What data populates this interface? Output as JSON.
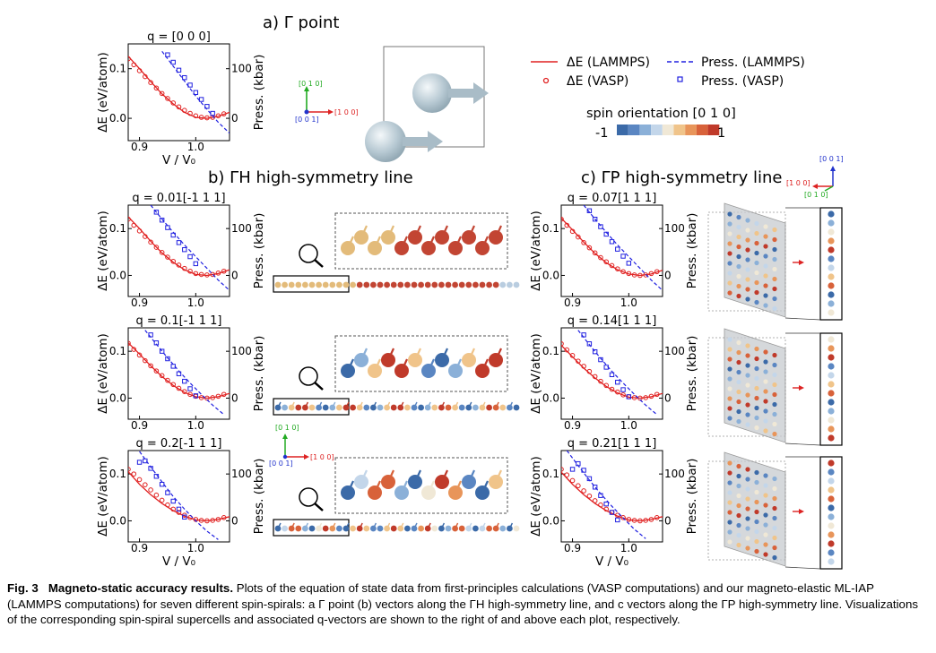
{
  "panels": {
    "a_title": "a) Γ point",
    "b_title": "b) ΓH high-symmetry line",
    "c_title": "c) ΓP high-symmetry line"
  },
  "legend": {
    "lammps_energy": "ΔE (LAMMPS)",
    "vasp_energy": "ΔE (VASP)",
    "lammps_press": "Press. (LAMMPS)",
    "vasp_press": "Press. (VASP)",
    "colorbar_title": "spin orientation [0 1 0]",
    "colorbar_min": "-1",
    "colorbar_max": "1",
    "colorbar_colors": [
      "#3b6aa8",
      "#5a86c2",
      "#8bb0d8",
      "#c3d6ea",
      "#f0e8d6",
      "#f0c48a",
      "#e8955a",
      "#d8623a",
      "#c03a2a"
    ]
  },
  "axes_common": {
    "energy_label": "ΔE (eV/atom)",
    "pressure_label": "Press. (kbar)",
    "x_label": "V / V₀",
    "energy_ticks": [
      "0.1",
      "0.0"
    ],
    "pressure_ticks": [
      "100",
      "0"
    ],
    "x_ticks": [
      "0.9",
      "1.0"
    ]
  },
  "vector_labels": {
    "x": "[1 0 0]",
    "y": "[0 1 0]",
    "z": "[0 0 1]"
  },
  "chart_data": [
    {
      "id": "a",
      "type": "line",
      "title": "q = [0 0 0]",
      "xlabel": "V / V₀",
      "ylabel": "ΔE (eV/atom)",
      "y2label": "Press. (kbar)",
      "xlim": [
        0.88,
        1.06
      ],
      "ylim": [
        -0.045,
        0.15
      ],
      "y2lim": [
        -45,
        150
      ],
      "series": [
        {
          "name": "ΔE (LAMMPS)",
          "x": [
            0.88,
            0.9,
            0.92,
            0.94,
            0.96,
            0.98,
            1.0,
            1.02,
            1.04,
            1.06
          ],
          "values": [
            0.125,
            0.1,
            0.074,
            0.049,
            0.029,
            0.012,
            0.002,
            0.0,
            0.004,
            0.012
          ]
        },
        {
          "name": "ΔE (VASP)",
          "x": [
            0.88,
            0.89,
            0.9,
            0.91,
            0.92,
            0.93,
            0.94,
            0.95,
            0.96,
            0.97,
            0.98,
            0.99,
            1.0,
            1.01,
            1.02,
            1.03,
            1.04,
            1.05
          ],
          "values": [
            0.12,
            0.108,
            0.096,
            0.084,
            0.072,
            0.061,
            0.05,
            0.04,
            0.031,
            0.023,
            0.016,
            0.01,
            0.005,
            0.002,
            0.001,
            0.002,
            0.005,
            0.009
          ]
        },
        {
          "name": "Press. (LAMMPS)",
          "x": [
            0.94,
            0.96,
            0.98,
            1.0,
            1.02,
            1.04,
            1.06
          ],
          "values": [
            135,
            105,
            75,
            45,
            18,
            -8,
            -30
          ]
        },
        {
          "name": "Press. (VASP)",
          "x": [
            0.95,
            0.96,
            0.97,
            0.98,
            0.99,
            1.0,
            1.01,
            1.02,
            1.03
          ],
          "values": [
            128,
            113,
            97,
            82,
            67,
            52,
            38,
            24,
            10
          ]
        }
      ]
    },
    {
      "id": "b1",
      "type": "line",
      "title": "q = 0.01[-1 1 1]",
      "xlabel": "",
      "ylabel": "ΔE (eV/atom)",
      "y2label": "Press. (kbar)",
      "xlim": [
        0.88,
        1.06
      ],
      "ylim": [
        -0.045,
        0.15
      ],
      "y2lim": [
        -45,
        150
      ],
      "series": [
        {
          "name": "ΔE (LAMMPS)",
          "x": [
            0.88,
            0.9,
            0.92,
            0.94,
            0.96,
            0.98,
            1.0,
            1.02,
            1.04,
            1.06
          ],
          "values": [
            0.125,
            0.1,
            0.073,
            0.048,
            0.028,
            0.012,
            0.002,
            0.0,
            0.004,
            0.012
          ]
        },
        {
          "name": "ΔE (VASP)",
          "x": [
            0.88,
            0.89,
            0.9,
            0.91,
            0.92,
            0.93,
            0.94,
            0.95,
            0.96,
            0.97,
            0.98,
            0.99,
            1.0,
            1.01,
            1.02,
            1.03,
            1.04,
            1.05
          ],
          "values": [
            0.12,
            0.107,
            0.095,
            0.083,
            0.071,
            0.06,
            0.049,
            0.039,
            0.03,
            0.022,
            0.015,
            0.009,
            0.004,
            0.002,
            0.001,
            0.002,
            0.005,
            0.009
          ]
        },
        {
          "name": "Press. (LAMMPS)",
          "x": [
            0.92,
            0.94,
            0.96,
            0.98,
            1.0,
            1.02,
            1.04,
            1.06
          ],
          "values": [
            150,
            120,
            92,
            65,
            40,
            15,
            -10,
            -32
          ]
        },
        {
          "name": "Press. (VASP)",
          "x": [
            0.93,
            0.94,
            0.95,
            0.96,
            0.97,
            0.98,
            0.99,
            1.0
          ],
          "values": [
            135,
            118,
            102,
            86,
            70,
            55,
            40,
            25
          ]
        }
      ]
    },
    {
      "id": "b2",
      "type": "line",
      "title": "q = 0.1[-1 1 1]",
      "xlabel": "",
      "ylabel": "ΔE (eV/atom)",
      "y2label": "Press. (kbar)",
      "xlim": [
        0.88,
        1.06
      ],
      "ylim": [
        -0.045,
        0.15
      ],
      "y2lim": [
        -45,
        150
      ],
      "series": [
        {
          "name": "ΔE (LAMMPS)",
          "x": [
            0.88,
            0.9,
            0.92,
            0.94,
            0.96,
            0.98,
            1.0,
            1.02,
            1.04,
            1.06
          ],
          "values": [
            0.118,
            0.094,
            0.069,
            0.046,
            0.027,
            0.012,
            0.003,
            0.0,
            0.003,
            0.01
          ]
        },
        {
          "name": "ΔE (VASP)",
          "x": [
            0.88,
            0.89,
            0.9,
            0.91,
            0.92,
            0.93,
            0.94,
            0.95,
            0.96,
            0.97,
            0.98,
            0.99,
            1.0,
            1.01,
            1.02,
            1.03,
            1.04,
            1.05
          ],
          "values": [
            0.117,
            0.104,
            0.092,
            0.08,
            0.069,
            0.058,
            0.048,
            0.038,
            0.029,
            0.021,
            0.014,
            0.008,
            0.004,
            0.001,
            0.0,
            0.001,
            0.004,
            0.008
          ]
        },
        {
          "name": "Press. (LAMMPS)",
          "x": [
            0.91,
            0.93,
            0.95,
            0.97,
            0.99,
            1.01,
            1.03,
            1.05
          ],
          "values": [
            145,
            115,
            86,
            58,
            32,
            8,
            -15,
            -35
          ]
        },
        {
          "name": "Press. (VASP)",
          "x": [
            0.92,
            0.93,
            0.94,
            0.95,
            0.96,
            0.97,
            0.98,
            0.99,
            1.0
          ],
          "values": [
            135,
            118,
            100,
            84,
            68,
            52,
            36,
            20,
            5
          ]
        }
      ]
    },
    {
      "id": "b3",
      "type": "line",
      "title": "q = 0.2[-1 1 1]",
      "xlabel": "V / V₀",
      "ylabel": "ΔE (eV/atom)",
      "y2label": "Press. (kbar)",
      "xlim": [
        0.88,
        1.06
      ],
      "ylim": [
        -0.045,
        0.15
      ],
      "y2lim": [
        -45,
        150
      ],
      "series": [
        {
          "name": "ΔE (LAMMPS)",
          "x": [
            0.88,
            0.9,
            0.92,
            0.94,
            0.96,
            0.98,
            1.0,
            1.02,
            1.04,
            1.06
          ],
          "values": [
            0.105,
            0.078,
            0.056,
            0.037,
            0.022,
            0.01,
            0.002,
            0.0,
            0.003,
            0.009
          ]
        },
        {
          "name": "ΔE (VASP)",
          "x": [
            0.88,
            0.89,
            0.9,
            0.91,
            0.92,
            0.93,
            0.94,
            0.95,
            0.96,
            0.97,
            0.98,
            0.99,
            1.0,
            1.01,
            1.02,
            1.03,
            1.04,
            1.05
          ],
          "values": [
            0.11,
            0.1,
            0.088,
            0.077,
            0.066,
            0.055,
            0.044,
            0.034,
            0.025,
            0.018,
            0.012,
            0.007,
            0.003,
            0.001,
            0.0,
            0.001,
            0.003,
            0.007
          ]
        },
        {
          "name": "Press. (LAMMPS)",
          "x": [
            0.9,
            0.92,
            0.94,
            0.96,
            0.98,
            1.0,
            1.02,
            1.04
          ],
          "values": [
            148,
            115,
            83,
            52,
            25,
            0,
            -22,
            -40
          ]
        },
        {
          "name": "Press. (VASP)",
          "x": [
            0.9,
            0.91,
            0.92,
            0.93,
            0.94,
            0.95,
            0.96,
            0.97,
            0.98
          ],
          "values": [
            125,
            128,
            112,
            95,
            78,
            60,
            42,
            25,
            8
          ]
        }
      ]
    },
    {
      "id": "c1",
      "type": "line",
      "title": "q = 0.07[1 1 1]",
      "xlabel": "",
      "ylabel": "ΔE (eV/atom)",
      "y2label": "Press. (kbar)",
      "xlim": [
        0.88,
        1.06
      ],
      "ylim": [
        -0.045,
        0.15
      ],
      "y2lim": [
        -45,
        150
      ],
      "series": [
        {
          "name": "ΔE (LAMMPS)",
          "x": [
            0.88,
            0.9,
            0.92,
            0.94,
            0.96,
            0.98,
            1.0,
            1.02,
            1.04,
            1.06
          ],
          "values": [
            0.122,
            0.097,
            0.071,
            0.047,
            0.027,
            0.012,
            0.003,
            0.0,
            0.003,
            0.011
          ]
        },
        {
          "name": "ΔE (VASP)",
          "x": [
            0.88,
            0.89,
            0.9,
            0.91,
            0.92,
            0.93,
            0.94,
            0.95,
            0.96,
            0.97,
            0.98,
            0.99,
            1.0,
            1.01,
            1.02,
            1.03,
            1.04,
            1.05
          ],
          "values": [
            0.12,
            0.107,
            0.094,
            0.082,
            0.07,
            0.059,
            0.048,
            0.038,
            0.029,
            0.021,
            0.014,
            0.008,
            0.004,
            0.001,
            0.0,
            0.001,
            0.004,
            0.008
          ]
        },
        {
          "name": "Press. (LAMMPS)",
          "x": [
            0.92,
            0.94,
            0.96,
            0.98,
            1.0,
            1.02,
            1.04,
            1.06
          ],
          "values": [
            150,
            120,
            92,
            65,
            40,
            15,
            -10,
            -32
          ]
        },
        {
          "name": "Press. (VASP)",
          "x": [
            0.93,
            0.94,
            0.95,
            0.96,
            0.97,
            0.98,
            0.99,
            1.0
          ],
          "values": [
            138,
            120,
            104,
            88,
            72,
            56,
            41,
            26
          ]
        }
      ]
    },
    {
      "id": "c2",
      "type": "line",
      "title": "q = 0.14[1 1 1]",
      "xlabel": "",
      "ylabel": "ΔE (eV/atom)",
      "y2label": "Press. (kbar)",
      "xlim": [
        0.88,
        1.06
      ],
      "ylim": [
        -0.045,
        0.15
      ],
      "y2lim": [
        -45,
        150
      ],
      "series": [
        {
          "name": "ΔE (LAMMPS)",
          "x": [
            0.88,
            0.9,
            0.92,
            0.94,
            0.96,
            0.98,
            1.0,
            1.02,
            1.04,
            1.06
          ],
          "values": [
            0.113,
            0.088,
            0.064,
            0.043,
            0.025,
            0.011,
            0.002,
            0.0,
            0.003,
            0.01
          ]
        },
        {
          "name": "ΔE (VASP)",
          "x": [
            0.88,
            0.89,
            0.9,
            0.91,
            0.92,
            0.93,
            0.94,
            0.95,
            0.96,
            0.97,
            0.98,
            0.99,
            1.0,
            1.01,
            1.02,
            1.03,
            1.04,
            1.05
          ],
          "values": [
            0.116,
            0.103,
            0.091,
            0.079,
            0.068,
            0.057,
            0.046,
            0.036,
            0.027,
            0.019,
            0.013,
            0.007,
            0.003,
            0.001,
            0.0,
            0.001,
            0.004,
            0.008
          ]
        },
        {
          "name": "Press. (LAMMPS)",
          "x": [
            0.91,
            0.93,
            0.95,
            0.97,
            0.99,
            1.01,
            1.03,
            1.05
          ],
          "values": [
            145,
            114,
            85,
            57,
            32,
            8,
            -15,
            -35
          ]
        },
        {
          "name": "Press. (VASP)",
          "x": [
            0.92,
            0.93,
            0.94,
            0.95,
            0.96,
            0.97,
            0.98,
            0.99,
            1.0
          ],
          "values": [
            135,
            116,
            99,
            82,
            66,
            50,
            34,
            18,
            3
          ]
        }
      ]
    },
    {
      "id": "c3",
      "type": "line",
      "title": "q = 0.21[1 1 1]",
      "xlabel": "V / V₀",
      "ylabel": "ΔE (eV/atom)",
      "y2label": "Press. (kbar)",
      "xlim": [
        0.88,
        1.06
      ],
      "ylim": [
        -0.045,
        0.15
      ],
      "y2lim": [
        -45,
        150
      ],
      "series": [
        {
          "name": "ΔE (LAMMPS)",
          "x": [
            0.88,
            0.9,
            0.92,
            0.94,
            0.96,
            0.98,
            1.0,
            1.02,
            1.04,
            1.06
          ],
          "values": [
            0.104,
            0.078,
            0.056,
            0.037,
            0.022,
            0.01,
            0.002,
            0.0,
            0.003,
            0.009
          ]
        },
        {
          "name": "ΔE (VASP)",
          "x": [
            0.88,
            0.89,
            0.9,
            0.91,
            0.92,
            0.93,
            0.94,
            0.95,
            0.96,
            0.97,
            0.98,
            0.99,
            1.0,
            1.01,
            1.02,
            1.03,
            1.04,
            1.05
          ],
          "values": [
            0.11,
            0.098,
            0.086,
            0.075,
            0.064,
            0.053,
            0.043,
            0.034,
            0.025,
            0.018,
            0.012,
            0.007,
            0.003,
            0.001,
            0.0,
            0.001,
            0.003,
            0.007
          ]
        },
        {
          "name": "Press. (LAMMPS)",
          "x": [
            0.89,
            0.91,
            0.93,
            0.95,
            0.97,
            0.99,
            1.01,
            1.03
          ],
          "values": [
            150,
            118,
            87,
            58,
            31,
            6,
            -18,
            -38
          ]
        },
        {
          "name": "Press. (VASP)",
          "x": [
            0.9,
            0.91,
            0.92,
            0.93,
            0.94,
            0.95,
            0.96,
            0.97,
            0.98
          ],
          "values": [
            110,
            122,
            108,
            90,
            72,
            54,
            36,
            18,
            2
          ]
        }
      ]
    }
  ],
  "caption": {
    "label": "Fig. 3",
    "title": "Magneto-static accuracy results.",
    "text": "Plots of the equation of state data from first-principles calculations (VASP computations) and our magneto-elastic ML-IAP (LAMMPS computations) for seven different spin-spirals: a Γ point (b) vectors along the ΓH high-symmetry line, and c vectors along the ΓP high-symmetry line. Visualizations of the corresponding spin-spiral supercells and associated q-vectors are shown to the right of and above each plot, respectively."
  }
}
